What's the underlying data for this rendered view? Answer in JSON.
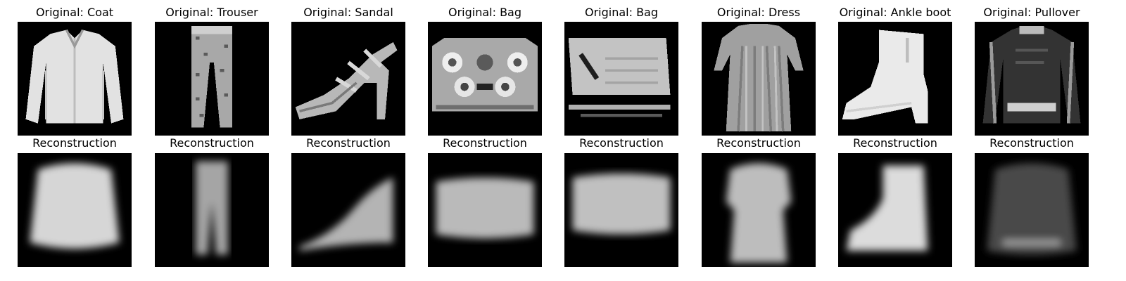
{
  "figure": {
    "background": "#ffffff",
    "image_background": "#000000",
    "colormap": "gray",
    "rows": [
      {
        "name": "original",
        "titles": [
          "Original: Coat",
          "Original: Trouser",
          "Original: Sandal",
          "Original: Bag",
          "Original: Bag",
          "Original: Dress",
          "Original: Ankle boot",
          "Original: Pullover"
        ],
        "items": [
          "coat",
          "trouser",
          "sandal",
          "bag",
          "bag-2",
          "dress",
          "ankle-boot",
          "pullover"
        ]
      },
      {
        "name": "reconstruction",
        "titles": [
          "Reconstruction",
          "Reconstruction",
          "Reconstruction",
          "Reconstruction",
          "Reconstruction",
          "Reconstruction",
          "Reconstruction",
          "Reconstruction"
        ],
        "items": [
          "coat",
          "trouser",
          "sandal",
          "bag",
          "bag-2",
          "dress",
          "ankle-boot",
          "pullover"
        ]
      }
    ]
  }
}
